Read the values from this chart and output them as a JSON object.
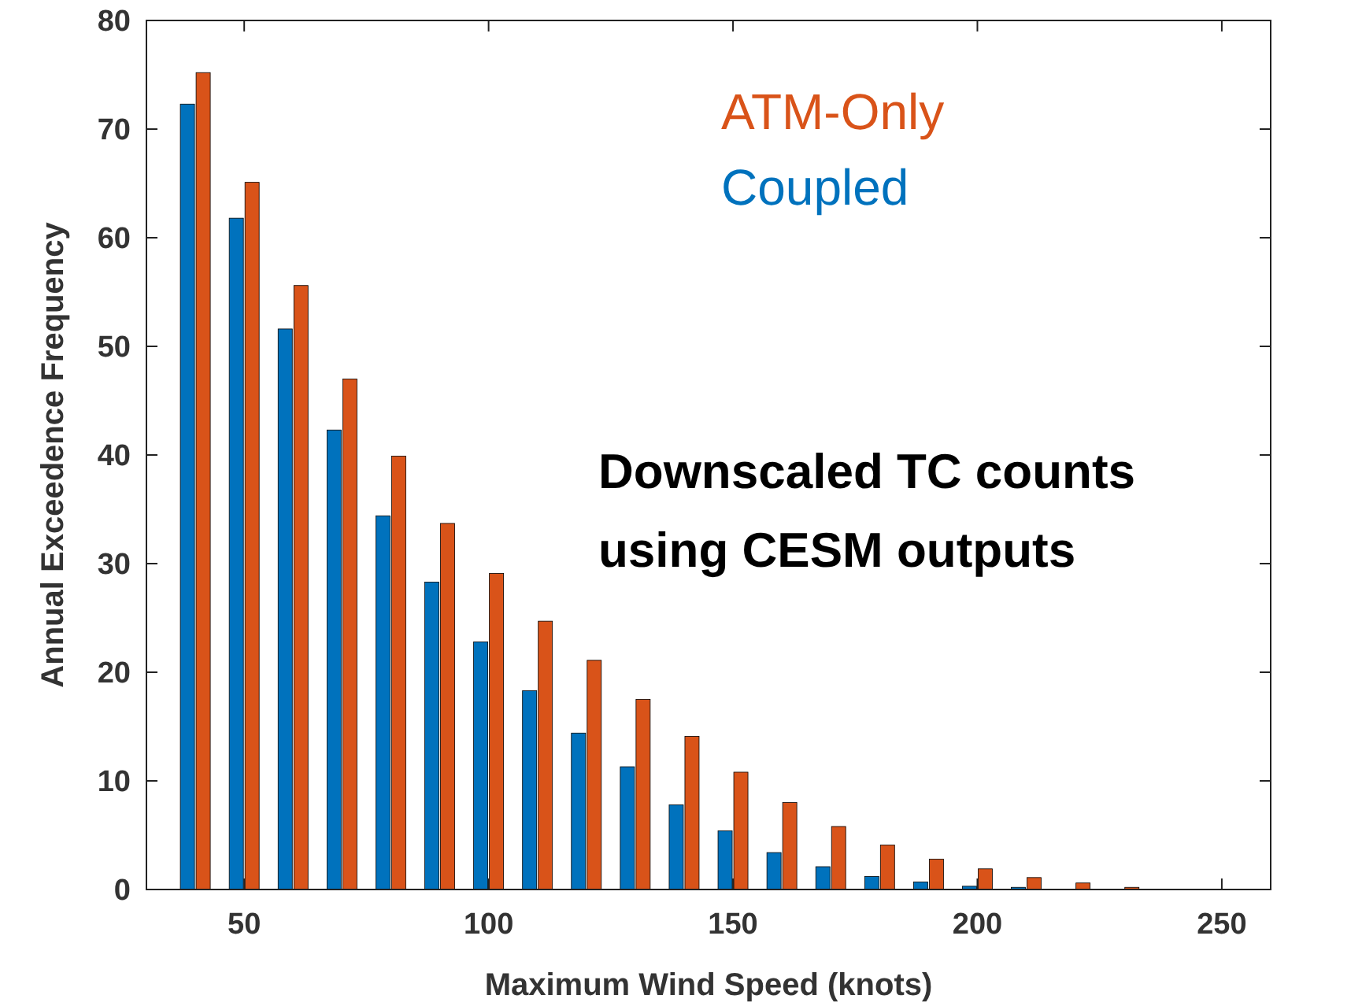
{
  "chart_data": {
    "type": "bar",
    "xlabel": "Maximum Wind Speed (knots)",
    "ylabel": "Annual Exceedence Frequency",
    "x": [
      40,
      50,
      60,
      70,
      80,
      90,
      100,
      110,
      120,
      130,
      140,
      150,
      160,
      170,
      180,
      190,
      200,
      210,
      220,
      230
    ],
    "series": [
      {
        "name": "Coupled",
        "color": "#0072bd",
        "values": [
          72.3,
          61.8,
          51.6,
          42.3,
          34.4,
          28.3,
          22.8,
          18.3,
          14.4,
          11.3,
          7.8,
          5.4,
          3.4,
          2.1,
          1.2,
          0.7,
          0.3,
          0.2,
          null,
          null
        ]
      },
      {
        "name": "ATM-Only",
        "color": "#d95319",
        "values": [
          75.2,
          65.1,
          55.6,
          47,
          39.9,
          33.7,
          29.1,
          24.7,
          21.1,
          17.5,
          14.1,
          10.8,
          8,
          5.8,
          4.1,
          2.8,
          1.9,
          1.1,
          0.6,
          0.2
        ]
      }
    ],
    "xlim": [
      30,
      260
    ],
    "xticks": [
      50,
      100,
      150,
      200,
      250
    ],
    "ylim": [
      0,
      80
    ],
    "yticks": [
      0,
      10,
      20,
      30,
      40,
      50,
      60,
      70,
      80
    ],
    "legend": "top right",
    "grid": false,
    "annotations": [
      "Downscaled TC counts using CESM outputs"
    ]
  }
}
